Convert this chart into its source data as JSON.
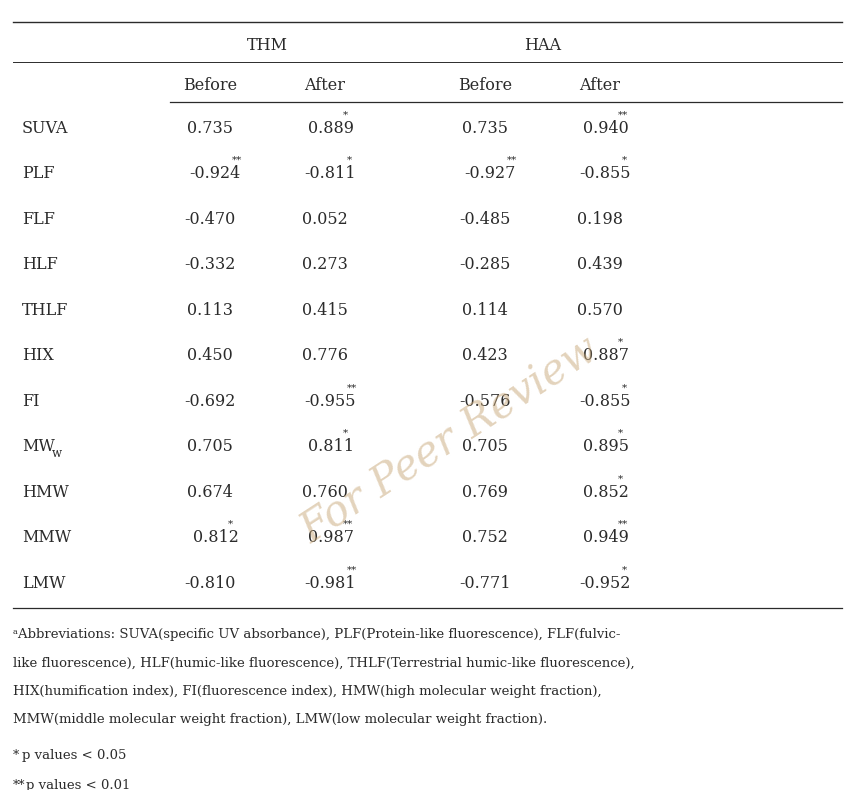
{
  "col_groups": [
    "THM",
    "HAA"
  ],
  "col_subheaders": [
    "Before",
    "After",
    "Before",
    "After"
  ],
  "row_labels": [
    "SUVA",
    "PLF",
    "FLF",
    "HLF",
    "THLF",
    "HIX",
    "FI",
    "MW_w",
    "HMW",
    "MMW",
    "LMW"
  ],
  "row_label_special": [
    false,
    false,
    false,
    false,
    false,
    false,
    false,
    true,
    false,
    false,
    false
  ],
  "data": [
    [
      "0.735",
      "0.889",
      "0.735",
      "0.940"
    ],
    [
      "-0.924",
      "-0.811",
      "-0.927",
      "-0.855"
    ],
    [
      "-0.470",
      "0.052",
      "-0.485",
      "0.198"
    ],
    [
      "-0.332",
      "0.273",
      "-0.285",
      "0.439"
    ],
    [
      "0.113",
      "0.415",
      "0.114",
      "0.570"
    ],
    [
      "0.450",
      "0.776",
      "0.423",
      "0.887"
    ],
    [
      "-0.692",
      "-0.955",
      "-0.576",
      "-0.855"
    ],
    [
      "0.705",
      "0.811",
      "0.705",
      "0.895"
    ],
    [
      "0.674",
      "0.760",
      "0.769",
      "0.852"
    ],
    [
      "0.812",
      "0.987",
      "0.752",
      "0.949"
    ],
    [
      "-0.810",
      "-0.981",
      "-0.771",
      "-0.952"
    ]
  ],
  "superscripts": [
    [
      "",
      "*",
      "",
      "**"
    ],
    [
      "**",
      "*",
      "**",
      "*"
    ],
    [
      "",
      "",
      "",
      ""
    ],
    [
      "",
      "",
      "",
      ""
    ],
    [
      "",
      "",
      "",
      ""
    ],
    [
      "",
      "",
      "",
      "*"
    ],
    [
      "",
      "**",
      "",
      "*"
    ],
    [
      "",
      "*",
      "",
      "*"
    ],
    [
      "",
      "",
      "",
      "*"
    ],
    [
      "*",
      "**",
      "",
      "**"
    ],
    [
      "",
      "**",
      "",
      "*"
    ]
  ],
  "footnote_lines": [
    "ᵃAbbreviations: SUVA(specific UV absorbance), PLF(Protein-like fluorescence), FLF(fulvic-",
    "like fluorescence), HLF(humic-like fluorescence), THLF(Terrestrial humic-like fluorescence),",
    "HIX(humification index), FI(fluorescence index), HMW(high molecular weight fraction),",
    "MMW(middle molecular weight fraction), LMW(low molecular weight fraction)."
  ],
  "text_color": "#2b2b2b",
  "line_color": "#2b2b2b",
  "watermark_color": "#c8a87a",
  "bg_color": "#ffffff",
  "fig_width": 8.55,
  "fig_height": 7.9,
  "dpi": 100
}
